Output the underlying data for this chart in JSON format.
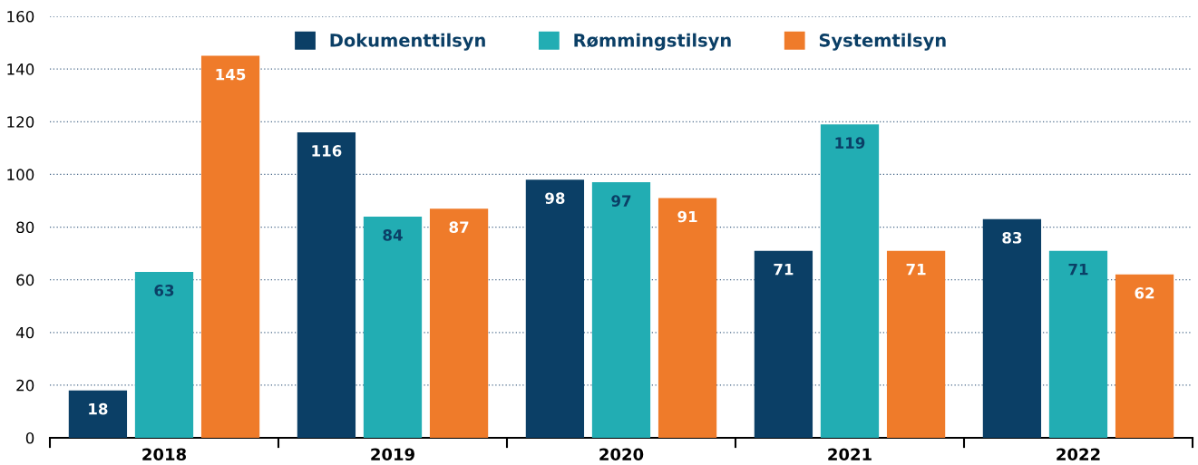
{
  "chart_data": {
    "type": "bar",
    "categories": [
      "2018",
      "2019",
      "2020",
      "2021",
      "2022"
    ],
    "series": [
      {
        "name": "Dokumenttilsyn",
        "color": "#0b3f66",
        "values": [
          18,
          116,
          98,
          71,
          83
        ]
      },
      {
        "name": "Rømmingstilsyn",
        "color": "#22adb3",
        "values": [
          63,
          84,
          97,
          119,
          71
        ]
      },
      {
        "name": "Systemtilsyn",
        "color": "#ef7b2a",
        "values": [
          145,
          87,
          91,
          71,
          62
        ]
      }
    ],
    "ylim": [
      0,
      160
    ],
    "yticks": [
      0,
      20,
      40,
      60,
      80,
      100,
      120,
      140,
      160
    ],
    "grid": "y",
    "legend": "top",
    "data_labels": true
  }
}
